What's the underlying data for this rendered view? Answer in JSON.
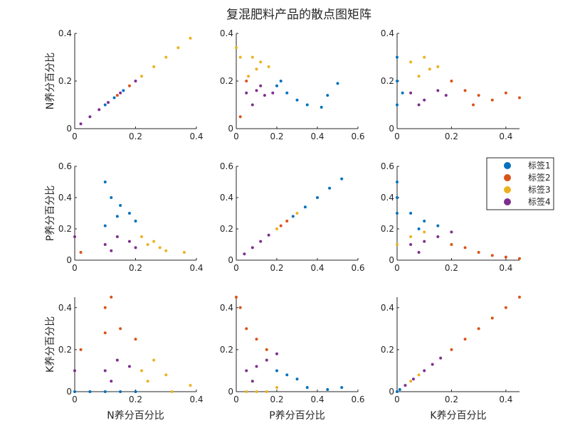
{
  "figure": {
    "title": "复混肥料产品的散点图矩阵"
  },
  "legend": {
    "placement": "right, middle row",
    "entries": [
      {
        "label": "标签1",
        "color": "#0072BD"
      },
      {
        "label": "标签2",
        "color": "#D95319"
      },
      {
        "label": "标签3",
        "color": "#EDB120"
      },
      {
        "label": "标签4",
        "color": "#7E2F8E"
      }
    ]
  },
  "chart_data": [
    {
      "type": "scatter",
      "row": 0,
      "col": 0,
      "x_var": "N",
      "y_var": "N",
      "xlabel": "",
      "ylabel": "N养分百分比",
      "xlim": [
        0,
        0.4
      ],
      "ylim": [
        0,
        0.4
      ],
      "xticks": [
        "0",
        "0.2",
        "0.4"
      ],
      "yticks": [
        "0",
        "0.2",
        "0.4"
      ],
      "series": [
        {
          "label_id": 1,
          "points": [
            [
              0.1,
              0.1
            ],
            [
              0.13,
              0.13
            ],
            [
              0.16,
              0.16
            ]
          ]
        },
        {
          "label_id": 2,
          "points": [
            [
              0.14,
              0.14
            ],
            [
              0.18,
              0.18
            ]
          ]
        },
        {
          "label_id": 3,
          "points": [
            [
              0.22,
              0.22
            ],
            [
              0.26,
              0.26
            ],
            [
              0.3,
              0.3
            ],
            [
              0.34,
              0.34
            ],
            [
              0.38,
              0.38
            ]
          ]
        },
        {
          "label_id": 4,
          "points": [
            [
              0.02,
              0.02
            ],
            [
              0.05,
              0.05
            ],
            [
              0.08,
              0.08
            ],
            [
              0.11,
              0.11
            ],
            [
              0.15,
              0.15
            ],
            [
              0.2,
              0.2
            ]
          ]
        }
      ]
    },
    {
      "type": "scatter",
      "row": 0,
      "col": 1,
      "x_var": "P",
      "y_var": "N",
      "xlabel": "",
      "ylabel": "",
      "xlim": [
        0,
        0.6
      ],
      "ylim": [
        0,
        0.4
      ],
      "xticks": [
        "0",
        "0.2",
        "0.4",
        "0.6"
      ],
      "yticks": [
        "0",
        "0.2",
        "0.4"
      ],
      "series": [
        {
          "label_id": 1,
          "points": [
            [
              0.2,
              0.18
            ],
            [
              0.25,
              0.15
            ],
            [
              0.3,
              0.12
            ],
            [
              0.35,
              0.1
            ],
            [
              0.42,
              0.09
            ],
            [
              0.5,
              0.19
            ],
            [
              0.45,
              0.14
            ],
            [
              0.22,
              0.2
            ]
          ]
        },
        {
          "label_id": 2,
          "points": [
            [
              0.02,
              0.05
            ],
            [
              0.05,
              0.2
            ]
          ]
        },
        {
          "label_id": 3,
          "points": [
            [
              0.02,
              0.3
            ],
            [
              0.08,
              0.3
            ],
            [
              0.12,
              0.28
            ],
            [
              0.16,
              0.26
            ],
            [
              0.06,
              0.22
            ],
            [
              0.1,
              0.25
            ],
            [
              0.0,
              0.34
            ]
          ]
        },
        {
          "label_id": 4,
          "points": [
            [
              0.05,
              0.15
            ],
            [
              0.1,
              0.16
            ],
            [
              0.14,
              0.14
            ],
            [
              0.18,
              0.15
            ],
            [
              0.08,
              0.1
            ],
            [
              0.12,
              0.18
            ]
          ]
        }
      ]
    },
    {
      "type": "scatter",
      "row": 0,
      "col": 2,
      "x_var": "K",
      "y_var": "N",
      "xlabel": "",
      "ylabel": "",
      "xlim": [
        0,
        0.45
      ],
      "ylim": [
        0,
        0.4
      ],
      "xticks": [
        "0",
        "0.2",
        "0.4"
      ],
      "yticks": [
        "0",
        "0.2",
        "0.4"
      ],
      "series": [
        {
          "label_id": 1,
          "points": [
            [
              0,
              0.3
            ],
            [
              0,
              0.2
            ],
            [
              0,
              0.1
            ],
            [
              0.02,
              0.15
            ]
          ]
        },
        {
          "label_id": 2,
          "points": [
            [
              0.2,
              0.2
            ],
            [
              0.25,
              0.16
            ],
            [
              0.3,
              0.14
            ],
            [
              0.35,
              0.12
            ],
            [
              0.4,
              0.15
            ],
            [
              0.45,
              0.13
            ],
            [
              0.28,
              0.1
            ]
          ]
        },
        {
          "label_id": 3,
          "points": [
            [
              0.05,
              0.28
            ],
            [
              0.1,
              0.3
            ],
            [
              0.15,
              0.26
            ],
            [
              0.08,
              0.22
            ],
            [
              0.12,
              0.25
            ]
          ]
        },
        {
          "label_id": 4,
          "points": [
            [
              0.05,
              0.15
            ],
            [
              0.1,
              0.12
            ],
            [
              0.15,
              0.16
            ],
            [
              0.18,
              0.14
            ],
            [
              0.08,
              0.1
            ]
          ]
        }
      ]
    },
    {
      "type": "scatter",
      "row": 1,
      "col": 0,
      "x_var": "N",
      "y_var": "P",
      "xlabel": "",
      "ylabel": "P养分百分比",
      "xlim": [
        0,
        0.4
      ],
      "ylim": [
        0,
        0.6
      ],
      "xticks": [
        "0",
        "0.2",
        "0.4"
      ],
      "yticks": [
        "0",
        "0.2",
        "0.4",
        "0.6"
      ],
      "series": [
        {
          "label_id": 1,
          "points": [
            [
              0.1,
              0.5
            ],
            [
              0.12,
              0.4
            ],
            [
              0.15,
              0.35
            ],
            [
              0.18,
              0.3
            ],
            [
              0.2,
              0.25
            ],
            [
              0.14,
              0.28
            ],
            [
              0.1,
              0.22
            ]
          ]
        },
        {
          "label_id": 2,
          "points": [
            [
              0.02,
              0.05
            ]
          ]
        },
        {
          "label_id": 3,
          "points": [
            [
              0.22,
              0.15
            ],
            [
              0.26,
              0.12
            ],
            [
              0.28,
              0.08
            ],
            [
              0.3,
              0.06
            ],
            [
              0.24,
              0.1
            ],
            [
              0.36,
              0.05
            ]
          ]
        },
        {
          "label_id": 4,
          "points": [
            [
              0.1,
              0.1
            ],
            [
              0.14,
              0.15
            ],
            [
              0.18,
              0.12
            ],
            [
              0.2,
              0.08
            ],
            [
              0.12,
              0.06
            ],
            [
              0.0,
              0.15
            ]
          ]
        }
      ]
    },
    {
      "type": "scatter",
      "row": 1,
      "col": 1,
      "x_var": "P",
      "y_var": "P",
      "xlabel": "",
      "ylabel": "",
      "xlim": [
        0,
        0.6
      ],
      "ylim": [
        0,
        0.6
      ],
      "xticks": [
        "0",
        "0.2",
        "0.4",
        "0.6"
      ],
      "yticks": [
        "0",
        "0.2",
        "0.4",
        "0.6"
      ],
      "series": [
        {
          "label_id": 1,
          "points": [
            [
              0.28,
              0.28
            ],
            [
              0.34,
              0.34
            ],
            [
              0.4,
              0.4
            ],
            [
              0.46,
              0.46
            ],
            [
              0.52,
              0.52
            ]
          ]
        },
        {
          "label_id": 2,
          "points": [
            [
              0.22,
              0.22
            ],
            [
              0.25,
              0.25
            ]
          ]
        },
        {
          "label_id": 3,
          "points": [
            [
              0.2,
              0.2
            ],
            [
              0.3,
              0.3
            ]
          ]
        },
        {
          "label_id": 4,
          "points": [
            [
              0.04,
              0.04
            ],
            [
              0.08,
              0.08
            ],
            [
              0.12,
              0.12
            ],
            [
              0.16,
              0.16
            ]
          ]
        }
      ]
    },
    {
      "type": "scatter",
      "row": 1,
      "col": 2,
      "x_var": "K",
      "y_var": "P",
      "xlabel": "",
      "ylabel": "",
      "xlim": [
        0,
        0.45
      ],
      "ylim": [
        0,
        0.6
      ],
      "xticks": [
        "0",
        "0.2",
        "0.4"
      ],
      "yticks": [
        "0",
        "0.2",
        "0.4",
        "0.6"
      ],
      "series": [
        {
          "label_id": 1,
          "points": [
            [
              0,
              0.5
            ],
            [
              0,
              0.4
            ],
            [
              0,
              0.3
            ],
            [
              0.05,
              0.3
            ],
            [
              0.1,
              0.25
            ],
            [
              0.15,
              0.22
            ],
            [
              0.08,
              0.2
            ]
          ]
        },
        {
          "label_id": 2,
          "points": [
            [
              0.2,
              0.1
            ],
            [
              0.25,
              0.08
            ],
            [
              0.3,
              0.05
            ],
            [
              0.35,
              0.03
            ],
            [
              0.4,
              0.02
            ],
            [
              0.45,
              0.01
            ]
          ]
        },
        {
          "label_id": 3,
          "points": [
            [
              0.05,
              0.15
            ],
            [
              0.1,
              0.18
            ],
            [
              0.0,
              0.1
            ]
          ]
        },
        {
          "label_id": 4,
          "points": [
            [
              0.05,
              0.1
            ],
            [
              0.1,
              0.12
            ],
            [
              0.15,
              0.15
            ],
            [
              0.2,
              0.18
            ],
            [
              0.08,
              0.05
            ]
          ]
        }
      ]
    },
    {
      "type": "scatter",
      "row": 2,
      "col": 0,
      "x_var": "N",
      "y_var": "K",
      "xlabel": "N养分百分比",
      "ylabel": "K养分百分比",
      "xlim": [
        0,
        0.4
      ],
      "ylim": [
        0,
        0.45
      ],
      "xticks": [
        "0",
        "0.2",
        "0.4"
      ],
      "yticks": [
        "0",
        "0.2",
        "0.4"
      ],
      "series": [
        {
          "label_id": 1,
          "points": [
            [
              0.05,
              0
            ],
            [
              0.1,
              0
            ],
            [
              0.15,
              0
            ],
            [
              0.2,
              0
            ],
            [
              0.0,
              0
            ]
          ]
        },
        {
          "label_id": 2,
          "points": [
            [
              0.12,
              0.45
            ],
            [
              0.1,
              0.4
            ],
            [
              0.15,
              0.3
            ],
            [
              0.2,
              0.25
            ],
            [
              0.1,
              0.28
            ],
            [
              0.02,
              0.2
            ]
          ]
        },
        {
          "label_id": 3,
          "points": [
            [
              0.22,
              0.1
            ],
            [
              0.26,
              0.15
            ],
            [
              0.3,
              0.08
            ],
            [
              0.24,
              0.05
            ],
            [
              0.38,
              0.03
            ],
            [
              0.32,
              0
            ]
          ]
        },
        {
          "label_id": 4,
          "points": [
            [
              0.1,
              0.1
            ],
            [
              0.14,
              0.15
            ],
            [
              0.18,
              0.12
            ],
            [
              0.12,
              0.05
            ],
            [
              0.0,
              0.1
            ]
          ]
        }
      ]
    },
    {
      "type": "scatter",
      "row": 2,
      "col": 1,
      "x_var": "P",
      "y_var": "K",
      "xlabel": "P养分百分比",
      "ylabel": "",
      "xlim": [
        0,
        0.6
      ],
      "ylim": [
        0,
        0.45
      ],
      "xticks": [
        "0",
        "0.2",
        "0.4",
        "0.6"
      ],
      "yticks": [
        "0",
        "0.2",
        "0.4"
      ],
      "series": [
        {
          "label_id": 1,
          "points": [
            [
              0.2,
              0.1
            ],
            [
              0.25,
              0.08
            ],
            [
              0.3,
              0.06
            ],
            [
              0.35,
              0.02
            ],
            [
              0.45,
              0.01
            ],
            [
              0.52,
              0.02
            ]
          ]
        },
        {
          "label_id": 2,
          "points": [
            [
              0.02,
              0.4
            ],
            [
              0.05,
              0.3
            ],
            [
              0.1,
              0.25
            ],
            [
              0.15,
              0.2
            ],
            [
              0.0,
              0.45
            ]
          ]
        },
        {
          "label_id": 3,
          "points": [
            [
              0.05,
              0
            ],
            [
              0.1,
              0
            ],
            [
              0.15,
              0
            ],
            [
              0.2,
              0.02
            ]
          ]
        },
        {
          "label_id": 4,
          "points": [
            [
              0.05,
              0.1
            ],
            [
              0.1,
              0.12
            ],
            [
              0.15,
              0.15
            ],
            [
              0.2,
              0.18
            ],
            [
              0.08,
              0.05
            ]
          ]
        }
      ]
    },
    {
      "type": "scatter",
      "row": 2,
      "col": 2,
      "x_var": "K",
      "y_var": "K",
      "xlabel": "K养分百分比",
      "ylabel": "",
      "xlim": [
        0,
        0.45
      ],
      "ylim": [
        0,
        0.45
      ],
      "xticks": [
        "0",
        "0.2",
        "0.4"
      ],
      "yticks": [
        "0",
        "0.2",
        "0.4"
      ],
      "series": [
        {
          "label_id": 1,
          "points": [
            [
              0.0,
              0.0
            ],
            [
              0.01,
              0.01
            ]
          ]
        },
        {
          "label_id": 2,
          "points": [
            [
              0.2,
              0.2
            ],
            [
              0.25,
              0.25
            ],
            [
              0.3,
              0.3
            ],
            [
              0.35,
              0.35
            ],
            [
              0.4,
              0.4
            ],
            [
              0.45,
              0.45
            ]
          ]
        },
        {
          "label_id": 3,
          "points": [
            [
              0.05,
              0.05
            ],
            [
              0.08,
              0.08
            ]
          ]
        },
        {
          "label_id": 4,
          "points": [
            [
              0.03,
              0.03
            ],
            [
              0.06,
              0.06
            ],
            [
              0.1,
              0.1
            ],
            [
              0.13,
              0.13
            ],
            [
              0.16,
              0.16
            ]
          ]
        }
      ]
    }
  ]
}
